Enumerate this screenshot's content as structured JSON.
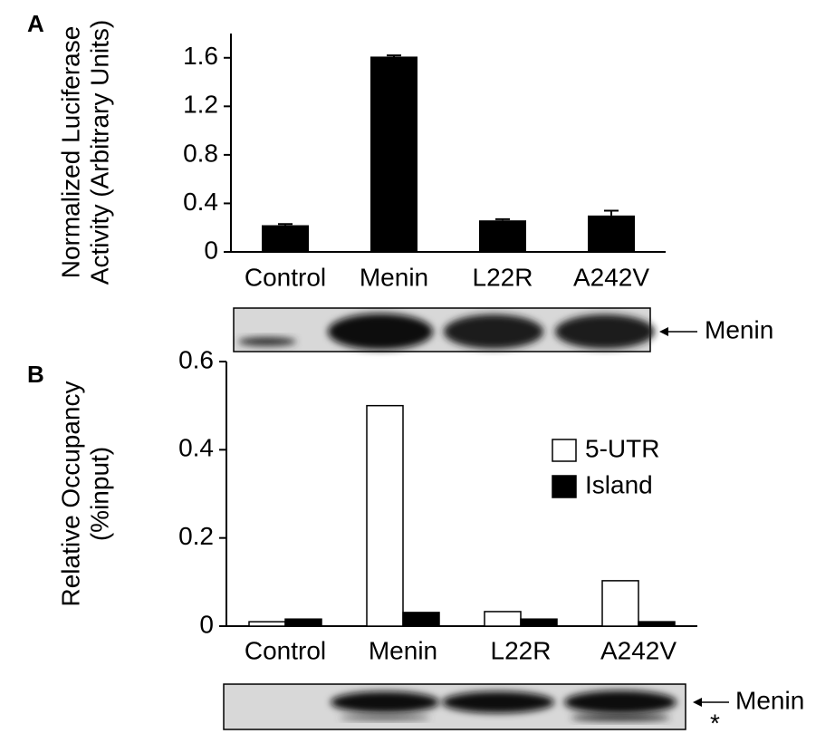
{
  "chart_data": [
    {
      "type": "bar",
      "panel_label": "A",
      "ylabel": [
        "Normalized Luciferase",
        "Activity (Arbitrary Units)"
      ],
      "categories": [
        "Control",
        "Menin",
        "L22R",
        "A242V"
      ],
      "values": [
        0.22,
        1.61,
        0.26,
        0.3
      ],
      "errors": [
        0.01,
        0.01,
        0.01,
        0.04
      ],
      "color": "#000000",
      "ylim": [
        0,
        1.8
      ],
      "yticks": [
        0,
        0.4,
        0.8,
        1.2,
        1.6
      ],
      "blot_label": "Menin"
    },
    {
      "type": "bar",
      "panel_label": "B",
      "ylabel": [
        "Relative Occupancy",
        "(%input)"
      ],
      "categories": [
        "Control",
        "Menin",
        "L22R",
        "A242V"
      ],
      "series": [
        {
          "name": "5-UTR",
          "color": "#ffffff",
          "values": [
            0.01,
            0.5,
            0.033,
            0.103
          ]
        },
        {
          "name": "Island",
          "color": "#000000",
          "values": [
            0.016,
            0.031,
            0.016,
            0.01
          ]
        }
      ],
      "ylim": [
        0,
        0.6
      ],
      "yticks": [
        0,
        0.2,
        0.4,
        0.6
      ],
      "blot_label": "Menin",
      "annotation": "*"
    }
  ]
}
